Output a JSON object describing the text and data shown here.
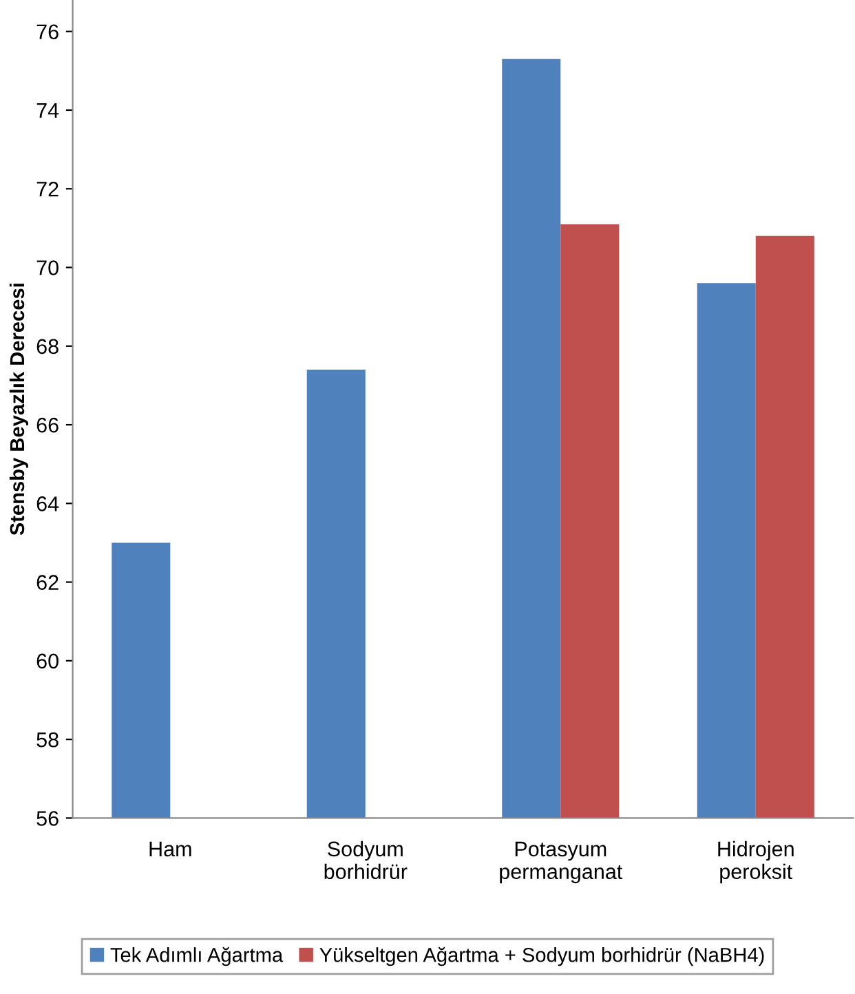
{
  "chart_data": {
    "type": "bar",
    "ylabel": "Stensby Beyazlık Derecesi",
    "categories": [
      "Ham",
      "Sodyum\nborhidrür",
      "Potasyum\npermanganat",
      "Hidrojen\nperoksit"
    ],
    "series": [
      {
        "name": "Tek Adımlı Ağartma",
        "color": "#4f81bd",
        "values": [
          63.0,
          67.4,
          75.3,
          69.6
        ]
      },
      {
        "name": "Yükseltgen Ağartma + Sodyum borhidrür (NaBH4)",
        "color": "#c0504d",
        "values": [
          null,
          null,
          71.1,
          70.8
        ]
      }
    ],
    "ylim": [
      56,
      76.8
    ],
    "yticks": [
      56,
      58,
      60,
      62,
      64,
      66,
      68,
      70,
      72,
      74,
      76
    ],
    "grid": false,
    "legend": "bottom"
  }
}
